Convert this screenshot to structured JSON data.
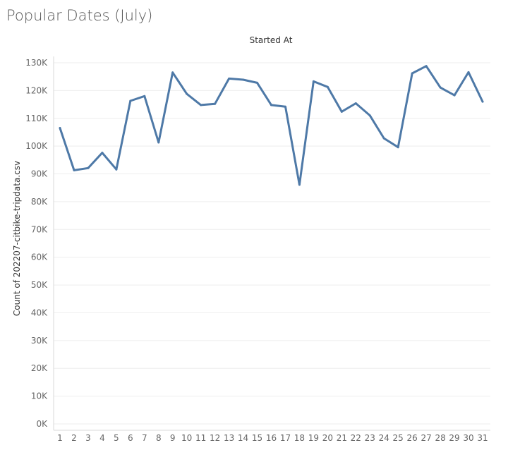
{
  "page_title": "Popular Dates (July)",
  "colors": {
    "line": "#4e79a7"
  },
  "chart_data": {
    "type": "line",
    "title": "Popular Dates (July)",
    "top_header": "Started At",
    "xlabel": "",
    "ylabel": "Count of 202207-citbike-tripdata.csv",
    "x": [
      1,
      2,
      3,
      4,
      5,
      6,
      7,
      8,
      9,
      10,
      11,
      12,
      13,
      14,
      15,
      16,
      17,
      18,
      19,
      20,
      21,
      22,
      23,
      24,
      25,
      26,
      27,
      28,
      29,
      30,
      31
    ],
    "x_tick_labels": [
      "1",
      "2",
      "3",
      "4",
      "5",
      "6",
      "7",
      "8",
      "9",
      "10",
      "11",
      "12",
      "13",
      "14",
      "15",
      "16",
      "17",
      "18",
      "19",
      "20",
      "21",
      "22",
      "23",
      "24",
      "25",
      "26",
      "27",
      "28",
      "29",
      "30",
      "31"
    ],
    "series": [
      {
        "values": [
          106500,
          91300,
          92100,
          97600,
          91600,
          116300,
          118000,
          101300,
          126500,
          118800,
          114800,
          115200,
          124300,
          123900,
          122800,
          114800,
          114200,
          86100,
          123300,
          121300,
          112400,
          115400,
          111000,
          102800,
          99600,
          126200,
          128800,
          121100,
          118300,
          126600,
          116000
        ]
      }
    ],
    "ylim": [
      0,
      130000
    ],
    "y_ticks": [
      0,
      10000,
      20000,
      30000,
      40000,
      50000,
      60000,
      70000,
      80000,
      90000,
      100000,
      110000,
      120000,
      130000
    ],
    "y_tick_labels": [
      "0K",
      "10K",
      "20K",
      "30K",
      "40K",
      "50K",
      "60K",
      "70K",
      "80K",
      "90K",
      "100K",
      "110K",
      "120K",
      "130K"
    ],
    "grid": true,
    "legend": "none"
  }
}
